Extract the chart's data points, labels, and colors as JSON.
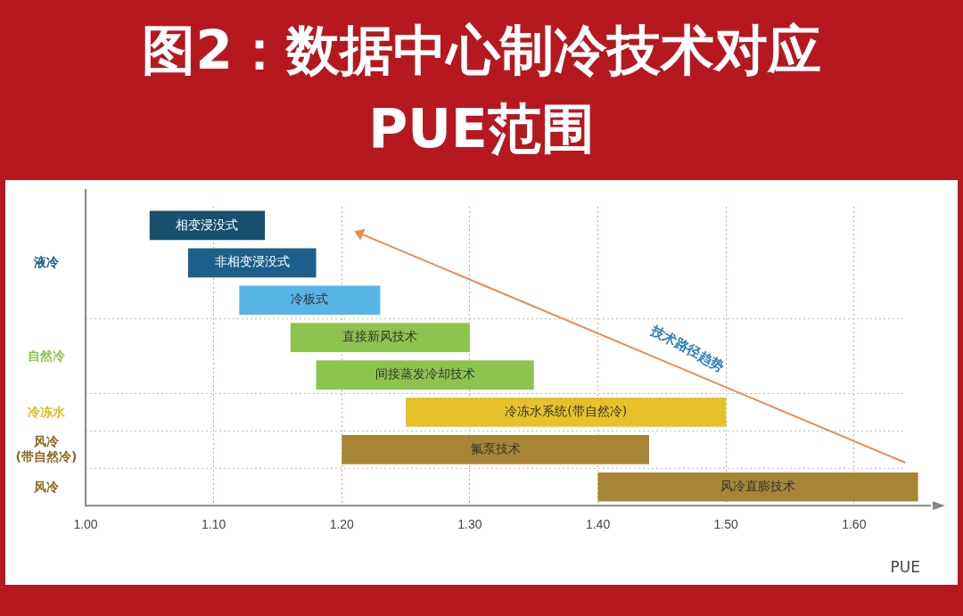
{
  "chart_data": {
    "type": "bar",
    "orientation": "horizontal",
    "title": "图2：数据中心制冷技术对应PUE范围",
    "xlabel": "PUE",
    "categories": [
      "相变浸没式",
      "非相变浸没式",
      "冷板式",
      "直接新风技术",
      "间接蒸发冷却技术",
      "冷冻水系统(带自然冷)",
      "氟泵技术",
      "风冷直膨技术"
    ],
    "base": [
      1.05,
      1.08,
      1.12,
      1.16,
      1.18,
      1.25,
      1.2,
      1.4
    ],
    "values": [
      0.09,
      0.1,
      0.11,
      0.14,
      0.17,
      0.25,
      0.24,
      0.25
    ],
    "colors": [
      "#174f6e",
      "#1d5f8a",
      "#56b4e6",
      "#8cc44e",
      "#8cc44e",
      "#e6c12a",
      "#a88536",
      "#a88536"
    ],
    "xlim": [
      1.0,
      1.66
    ],
    "xticks": [
      {
        "value": 1.0,
        "label": "1.00"
      },
      {
        "value": 1.1,
        "label": "1.10"
      },
      {
        "value": 1.2,
        "label": "1.20"
      },
      {
        "value": 1.3,
        "label": "1.30"
      },
      {
        "value": 1.4,
        "label": "1.40"
      },
      {
        "value": 1.5,
        "label": "1.50"
      },
      {
        "value": 1.6,
        "label": "1.60"
      }
    ],
    "grid": "x",
    "legend": false,
    "annotations": [
      "液冷",
      "自然冷",
      "冷冻水",
      "风冷\n(带自然冷)",
      "风冷",
      "技术路径趋势"
    ]
  }
}
